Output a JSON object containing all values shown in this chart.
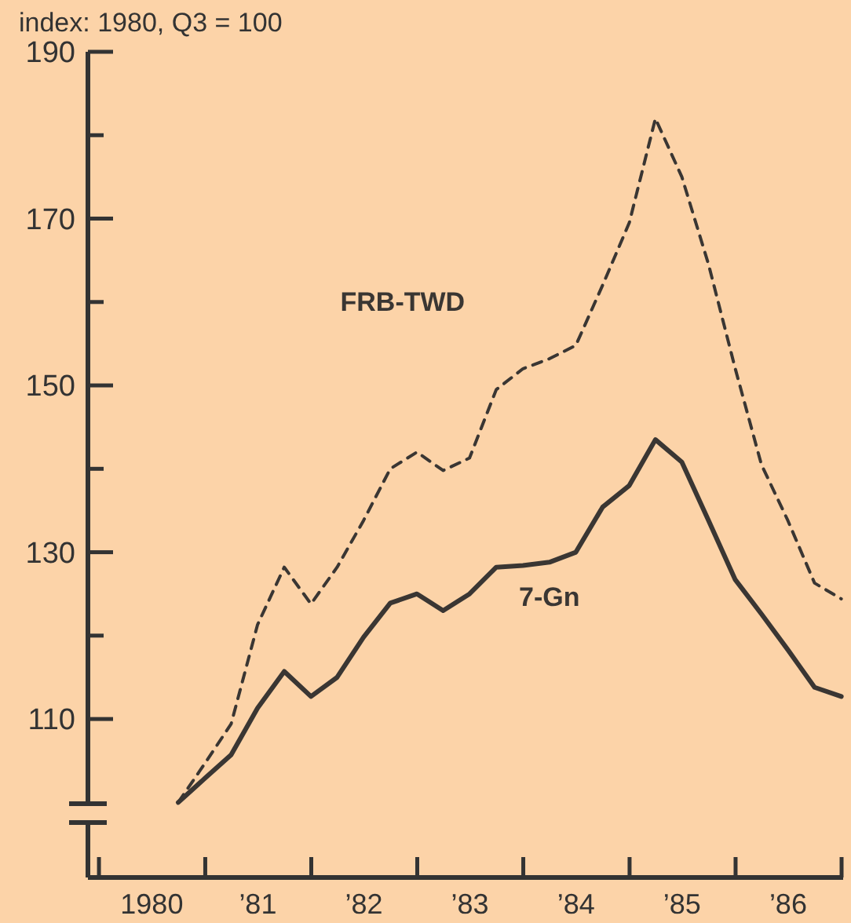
{
  "chart_data": {
    "type": "line",
    "ylabel": "index:  1980, Q3 = 100",
    "x": [
      "1980-09-30",
      "1980-12-31",
      "1981-03-31",
      "1981-06-30",
      "1981-09-30",
      "1981-12-31",
      "1982-03-31",
      "1982-06-30",
      "1982-09-30",
      "1982-12-31",
      "1983-03-31",
      "1983-06-30",
      "1983-09-30",
      "1983-12-31",
      "1984-03-31",
      "1984-06-30",
      "1984-09-30",
      "1984-12-31",
      "1985-03-31",
      "1985-06-30",
      "1985-09-30",
      "1985-12-31",
      "1986-03-31",
      "1986-06-30",
      "1986-09-30",
      "1986-12-31"
    ],
    "series": [
      {
        "name": "FRB-TWD",
        "color": "#3a3633",
        "line_style": "dashed",
        "values": [
          100,
          104.7,
          109.4,
          121.3,
          128.2,
          123.8,
          128.2,
          133.8,
          140,
          142,
          139.8,
          141.3,
          149.5,
          152,
          153.2,
          154.8,
          162,
          169.5,
          182,
          175,
          164.5,
          152,
          140.5,
          133.8,
          126.3,
          124.4
        ]
      },
      {
        "name": "7-Gn",
        "color": "#3a3633",
        "line_style": "solid",
        "values": [
          100,
          102.9,
          105.7,
          111.3,
          115.7,
          112.7,
          115,
          119.8,
          123.9,
          125,
          123,
          125,
          128.2,
          128.4,
          128.8,
          130,
          135.4,
          138,
          143.5,
          140.8,
          133.8,
          126.7,
          122.6,
          118.3,
          113.8,
          112.7
        ]
      }
    ],
    "xlim": [
      "1979-11-24",
      "1987-01-01"
    ],
    "xticks": [
      {
        "value": "1980-01-01",
        "label": null
      },
      {
        "value": "1980-07-01",
        "label": "1980"
      },
      {
        "value": "1981-01-01",
        "label": null
      },
      {
        "value": "1981-07-01",
        "label": "’81"
      },
      {
        "value": "1982-01-01",
        "label": null
      },
      {
        "value": "1982-07-01",
        "label": "’82"
      },
      {
        "value": "1983-01-01",
        "label": null
      },
      {
        "value": "1983-07-01",
        "label": "’83"
      },
      {
        "value": "1984-01-01",
        "label": null
      },
      {
        "value": "1984-07-01",
        "label": "’84"
      },
      {
        "value": "1985-01-01",
        "label": null
      },
      {
        "value": "1985-07-01",
        "label": "’85"
      },
      {
        "value": "1986-01-01",
        "label": null
      },
      {
        "value": "1986-07-01",
        "label": "’86"
      },
      {
        "value": "1987-01-01",
        "label": null
      }
    ],
    "ylim": [
      91,
      190
    ],
    "yticks": [
      110,
      {
        "value": 120,
        "label": null
      },
      130,
      {
        "value": 140,
        "label": null
      },
      150,
      {
        "value": 160,
        "label": null
      },
      170,
      {
        "value": 180,
        "label": null
      },
      190
    ],
    "grid": false,
    "legend": false,
    "marker": "none"
  }
}
